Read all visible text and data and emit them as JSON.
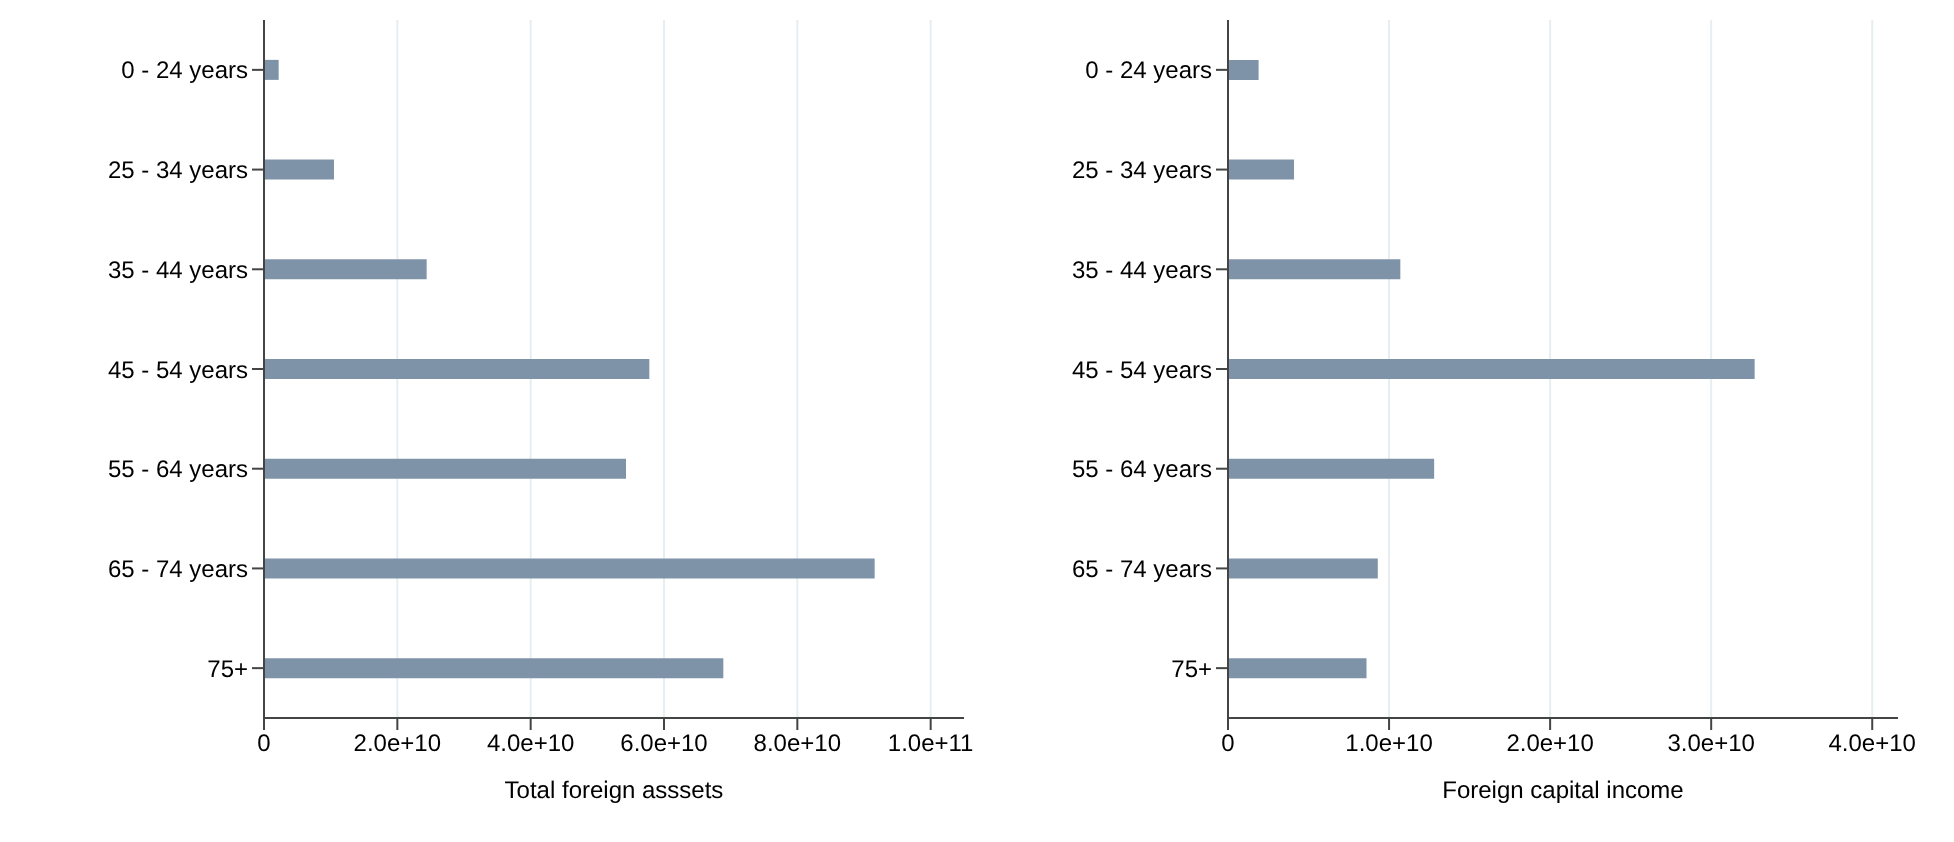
{
  "chart_data": [
    {
      "type": "bar",
      "orientation": "horizontal",
      "categories": [
        "0 - 24 years",
        "25 - 34 years",
        "35 - 44 years",
        "45 - 54 years",
        "55 - 64 years",
        "65 - 74 years",
        "75+"
      ],
      "values": [
        2200000000.0,
        10500000000.0,
        24400000000.0,
        57800000000.0,
        54300000000.0,
        91600000000.0,
        68900000000.0
      ],
      "color": "#7f93a8",
      "xlabel": "Total foreign asssets",
      "xlim": [
        0,
        105000000000.0
      ],
      "xticks": [
        0,
        {
          "value": 20000000000.0,
          "label": "2.0e+10"
        },
        {
          "value": 40000000000.0,
          "label": "4.0e+10"
        },
        {
          "value": 60000000000.0,
          "label": "6.0e+10"
        },
        {
          "value": 80000000000.0,
          "label": "8.0e+10"
        },
        {
          "value": 100000000000.0,
          "label": "1.0e+11"
        }
      ],
      "grid": "x"
    },
    {
      "type": "bar",
      "orientation": "horizontal",
      "categories": [
        "0 - 24 years",
        "25 - 34 years",
        "35 - 44 years",
        "45 - 54 years",
        "55 - 64 years",
        "65 - 74 years",
        "75+"
      ],
      "values": [
        1900000000.0,
        4100000000.0,
        10700000000.0,
        32700000000.0,
        12800000000.0,
        9300000000.0,
        8600000000.0
      ],
      "color": "#7f93a8",
      "xlabel": "Foreign capital income",
      "xlim": [
        0,
        41600000000.0
      ],
      "xticks": [
        0,
        {
          "value": 10000000000.0,
          "label": "1.0e+10"
        },
        {
          "value": 20000000000.0,
          "label": "2.0e+10"
        },
        {
          "value": 30000000000.0,
          "label": "3.0e+10"
        },
        {
          "value": 40000000000.0,
          "label": "4.0e+10"
        }
      ],
      "grid": "x"
    }
  ]
}
